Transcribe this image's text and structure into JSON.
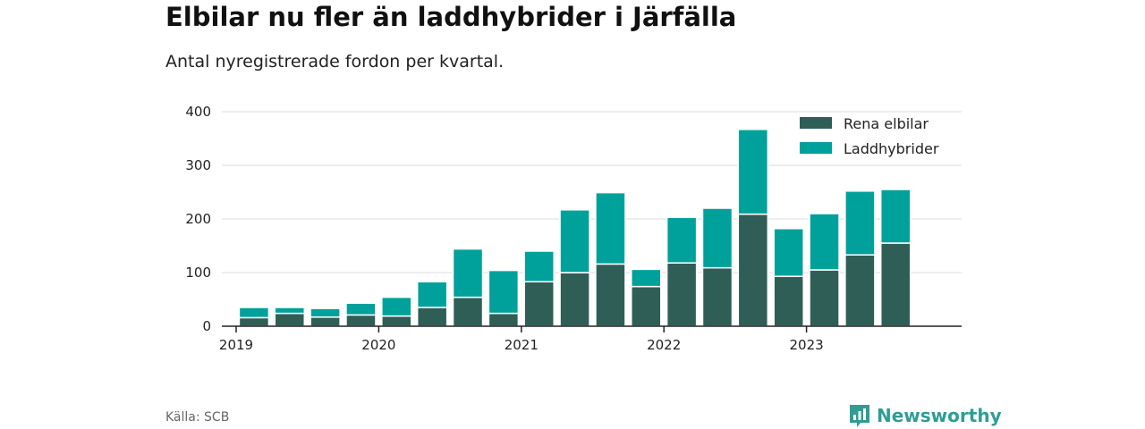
{
  "header": {
    "title": "Elbilar nu fler än laddhybrider i Järfälla",
    "subtitle": "Antal nyregistrerade fordon per kvartal."
  },
  "footer": {
    "source": "Källa: SCB",
    "brand": "Newsworthy",
    "brand_icon": "bar-chart-logo-icon"
  },
  "colors": {
    "elbilar": "#2f5e57",
    "laddhybrider": "#00a19a",
    "grid": "#dddddd",
    "axis": "#222222",
    "brand": "#2f9d94"
  },
  "chart_data": {
    "type": "bar",
    "stacked": true,
    "title": "Elbilar nu fler än laddhybrider i Järfälla",
    "subtitle": "Antal nyregistrerade fordon per kvartal.",
    "xlabel": "",
    "ylabel": "",
    "ylim": [
      0,
      400
    ],
    "yticks": [
      0,
      100,
      200,
      300,
      400
    ],
    "grid": true,
    "legend_position": "top-right",
    "categories": [
      "2019 Q1",
      "2019 Q2",
      "2019 Q3",
      "2019 Q4",
      "2020 Q1",
      "2020 Q2",
      "2020 Q3",
      "2020 Q4",
      "2021 Q1",
      "2021 Q2",
      "2021 Q3",
      "2021 Q4",
      "2022 Q1",
      "2022 Q2",
      "2022 Q3",
      "2022 Q4",
      "2023 Q1",
      "2023 Q2",
      "2023 Q3",
      "2023 Q4"
    ],
    "xticks": [
      {
        "label": "2019",
        "year": 2019
      },
      {
        "label": "2020",
        "year": 2020
      },
      {
        "label": "2021",
        "year": 2021
      },
      {
        "label": "2022",
        "year": 2022
      },
      {
        "label": "2023",
        "year": 2023
      }
    ],
    "x_start_year": 2019,
    "series": [
      {
        "name": "Rena elbilar",
        "color_key": "elbilar",
        "values": [
          16,
          24,
          17,
          21,
          19,
          35,
          54,
          24,
          83,
          100,
          116,
          74,
          118,
          109,
          209,
          93,
          105,
          133,
          155,
          0
        ]
      },
      {
        "name": "Laddhybrider",
        "color_key": "laddhybrider",
        "values": [
          19,
          11,
          16,
          22,
          35,
          48,
          90,
          80,
          57,
          117,
          133,
          32,
          85,
          111,
          158,
          89,
          105,
          119,
          100,
          0
        ]
      }
    ]
  }
}
